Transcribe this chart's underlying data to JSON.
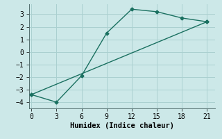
{
  "title": "",
  "xlabel": "Humidex (Indice chaleur)",
  "ylabel": "",
  "bg_color": "#cce8e8",
  "grid_color": "#aad0d0",
  "line_color": "#1a7060",
  "line1_x": [
    0,
    3,
    6,
    9,
    12,
    15,
    18,
    21
  ],
  "line1_y": [
    -3.4,
    -4.0,
    -1.9,
    1.5,
    3.4,
    3.2,
    2.7,
    2.4
  ],
  "line2_x": [
    0,
    21
  ],
  "line2_y": [
    -3.4,
    2.4
  ],
  "xlim": [
    -0.3,
    22
  ],
  "ylim": [
    -4.5,
    3.8
  ],
  "xticks": [
    0,
    3,
    6,
    9,
    12,
    15,
    18,
    21
  ],
  "yticks": [
    -4,
    -3,
    -2,
    -1,
    0,
    1,
    2,
    3
  ],
  "marker": "D",
  "marker_size": 2.5,
  "line_width": 1.0,
  "font_family": "monospace",
  "xlabel_fontsize": 7.5,
  "tick_fontsize": 7
}
